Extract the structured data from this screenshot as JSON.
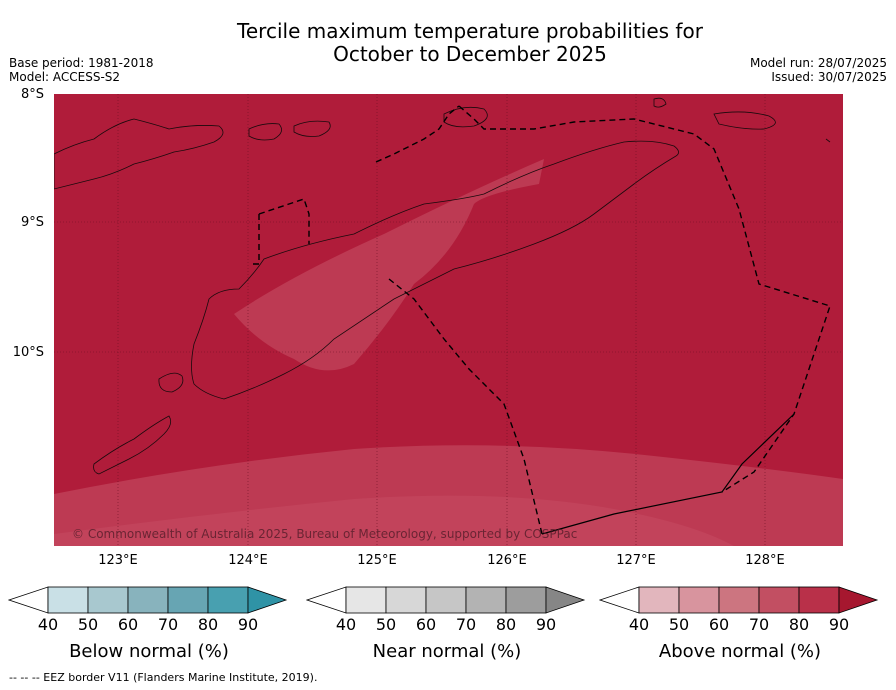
{
  "title_line1": "Tercile maximum temperature probabilities for",
  "title_line2": "October to December 2025",
  "meta": {
    "base_period": "Base period: 1981-2018",
    "model": "Model: ACCESS-S2",
    "model_run": "Model run: 28/07/2025",
    "issued": "Issued: 30/07/2025"
  },
  "map": {
    "lat_labels": [
      "8°S",
      "9°S",
      "10°S"
    ],
    "lon_labels": [
      "123°E",
      "124°E",
      "125°E",
      "126°E",
      "127°E",
      "128°E"
    ],
    "copyright": "© Commonwealth of Australia 2025, Bureau of Meteorology, supported by COSPPac",
    "colors": {
      "above_90": "#b01c3a",
      "above_80": "#bd3a53",
      "above_70": "#c95f70",
      "land_line": "#1a0a0d",
      "eez_line": "#000000"
    }
  },
  "legends": [
    {
      "name": "Below normal (%)",
      "ticks": [
        "40",
        "50",
        "60",
        "70",
        "80",
        "90"
      ],
      "colors": [
        "#ffffff",
        "#c9e0e6",
        "#a8c8cf",
        "#88b3bd",
        "#67a5b3",
        "#48a0b0",
        "#2f93a6"
      ]
    },
    {
      "name": "Near normal (%)",
      "ticks": [
        "40",
        "50",
        "60",
        "70",
        "80",
        "90"
      ],
      "colors": [
        "#ffffff",
        "#e6e6e6",
        "#d7d7d7",
        "#c6c6c6",
        "#b3b3b3",
        "#9d9d9d",
        "#868686"
      ]
    },
    {
      "name": "Above normal (%)",
      "ticks": [
        "40",
        "50",
        "60",
        "70",
        "80",
        "90"
      ],
      "colors": [
        "#ffffff",
        "#e2b6bd",
        "#d8949e",
        "#cc7580",
        "#c24f62",
        "#b93049",
        "#a6172f"
      ]
    }
  ],
  "footnote": "--  --  -- EEZ border V11 (Flanders Marine Institute, 2019)."
}
